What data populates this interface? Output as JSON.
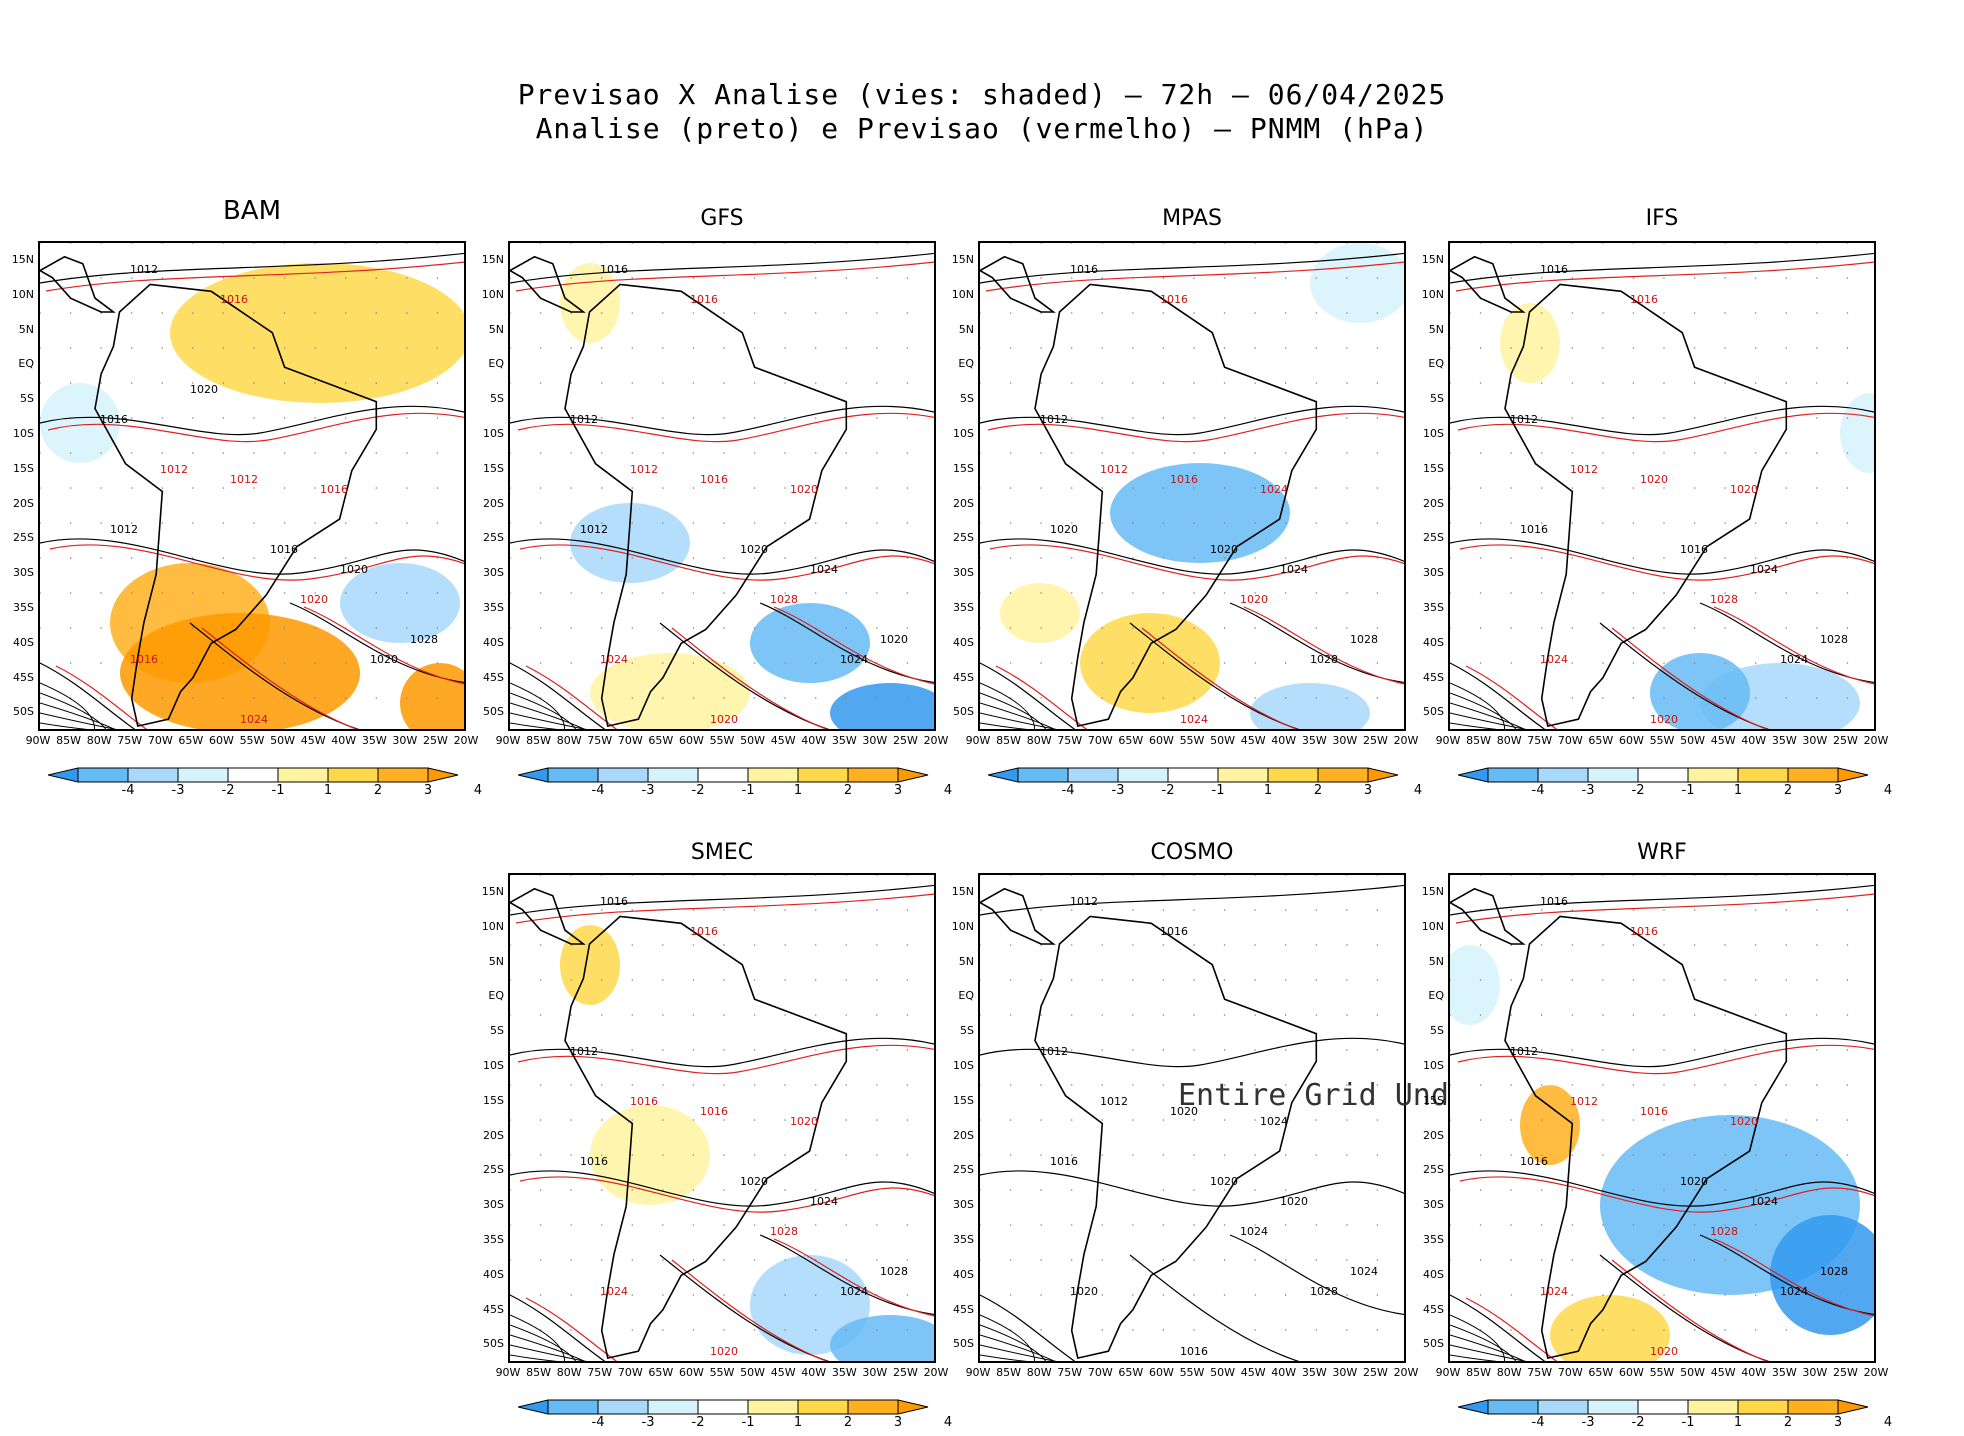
{
  "header": {
    "line1": "Previsao X Analise (vies: shaded) – 72h – 06/04/2025",
    "line2": "Analise (preto) e Previsao (vermelho) – PNMM (hPa)"
  },
  "axes": {
    "lat_labels": [
      "15N",
      "10N",
      "5N",
      "EQ",
      "5S",
      "10S",
      "15S",
      "20S",
      "25S",
      "30S",
      "35S",
      "40S",
      "45S",
      "50S"
    ],
    "lon_labels": [
      "90W",
      "85W",
      "80W",
      "75W",
      "70W",
      "65W",
      "60W",
      "55W",
      "50W",
      "45W",
      "40W",
      "35W",
      "30W",
      "25W",
      "20W"
    ]
  },
  "colorbar": {
    "labels": [
      "-4",
      "-3",
      "-2",
      "-1",
      "1",
      "2",
      "3",
      "4"
    ],
    "colors": [
      "#3399ee",
      "#66bbf5",
      "#a8d8fb",
      "#d6f3fb",
      "#ffffff",
      "#fff3a0",
      "#ffd84a",
      "#ffb020",
      "#ff9900"
    ]
  },
  "contour_colors": {
    "analysis": "#000000",
    "forecast": "#e02020"
  },
  "panels": [
    {
      "name": "BAM",
      "labels": [
        "1012",
        "1016",
        "1016",
        "1012",
        "1012",
        "1012",
        "1016",
        "1016",
        "1020",
        "1020",
        "1020",
        "1024",
        "1028",
        "1016",
        "1020"
      ]
    },
    {
      "name": "GFS",
      "labels": [
        "1016",
        "1016",
        "1012",
        "1012",
        "1012",
        "1016",
        "1020",
        "1020",
        "1024",
        "1028",
        "1024",
        "1020",
        "1020",
        "1024"
      ]
    },
    {
      "name": "MPAS",
      "labels": [
        "1016",
        "1016",
        "1012",
        "1012",
        "1020",
        "1016",
        "1020",
        "1024",
        "1024",
        "1020",
        "1028",
        "1024",
        "1028"
      ]
    },
    {
      "name": "IFS",
      "labels": [
        "1016",
        "1016",
        "1012",
        "1012",
        "1016",
        "1020",
        "1016",
        "1020",
        "1024",
        "1028",
        "1024",
        "1020",
        "1028",
        "1024"
      ]
    },
    {
      "name": "SMEC",
      "labels": [
        "1016",
        "1016",
        "1012",
        "1016",
        "1016",
        "1016",
        "1020",
        "1020",
        "1024",
        "1028",
        "1024",
        "1020",
        "1028",
        "1024"
      ]
    },
    {
      "name": "COSMO",
      "labels": [
        "1012",
        "1016",
        "1012",
        "1012",
        "1016",
        "1020",
        "1020",
        "1024",
        "1020",
        "1024",
        "1028",
        "1016",
        "1024",
        "1020"
      ],
      "undef_text": "Entire Grid Undef"
    },
    {
      "name": "WRF",
      "labels": [
        "1016",
        "1016",
        "1012",
        "1012",
        "1016",
        "1016",
        "1020",
        "1020",
        "1024",
        "1028",
        "1024",
        "1020",
        "1028",
        "1024"
      ]
    }
  ]
}
